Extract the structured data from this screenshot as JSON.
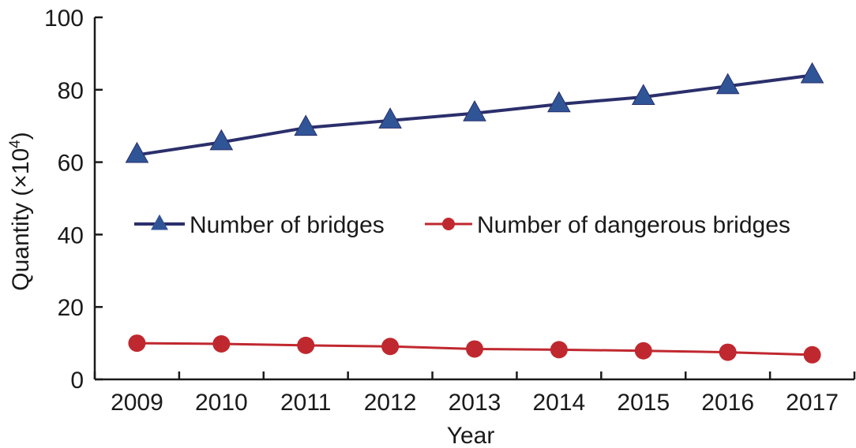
{
  "chart_data": {
    "type": "line",
    "title": "",
    "xlabel": "Year",
    "ylabel_main": "Quantity (×10",
    "ylabel_sup": "4",
    "ylabel_tail": ")",
    "x": [
      "2009",
      "2010",
      "2011",
      "2012",
      "2013",
      "2014",
      "2015",
      "2016",
      "2017"
    ],
    "ylim": [
      0,
      100
    ],
    "yticks": [
      0,
      20,
      40,
      60,
      80,
      100
    ],
    "ytick_labels": [
      "0",
      "20",
      "40",
      "60",
      "80",
      "100"
    ],
    "grid": false,
    "legend": "center",
    "series": [
      {
        "name": "Number of bridges",
        "values": [
          62,
          65.5,
          69.5,
          71.5,
          73.5,
          76,
          78,
          81,
          84
        ],
        "color": "#2b2f6b",
        "marker_color": "#2f5597",
        "marker": "triangle"
      },
      {
        "name": "Number of dangerous bridges",
        "values": [
          10,
          9.8,
          9.4,
          9.1,
          8.4,
          8.2,
          7.9,
          7.5,
          6.8
        ],
        "color": "#c0282f",
        "marker_color": "#c0282f",
        "marker": "circle"
      }
    ]
  }
}
